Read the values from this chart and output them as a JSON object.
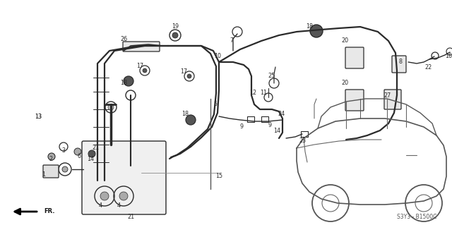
{
  "bg_color": "#ffffff",
  "line_color": "#2a2a2a",
  "code_text": "S3Y3 - B1500C",
  "figsize": [
    6.4,
    3.19
  ],
  "dpi": 100,
  "tube_lw": 1.6,
  "thin_lw": 0.9,
  "label_fontsize": 5.8
}
